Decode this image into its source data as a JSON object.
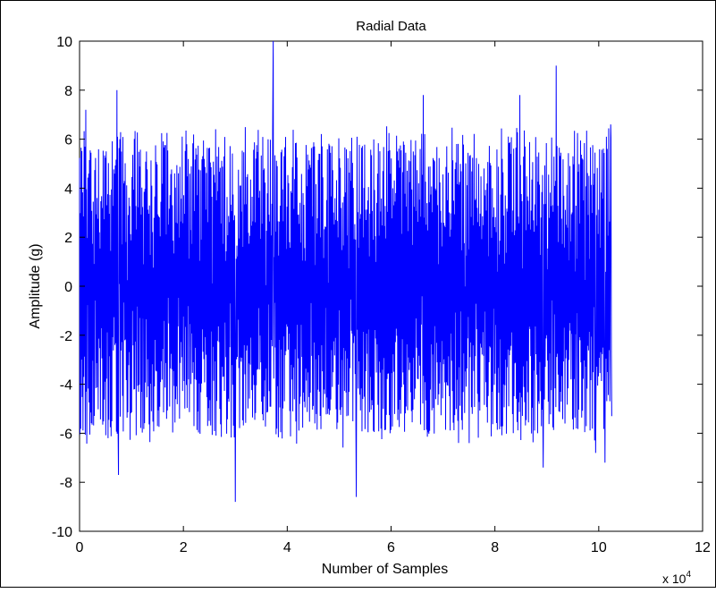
{
  "chart_data": {
    "type": "line",
    "title": "Radial Data",
    "xlabel": "Number of Samples",
    "ylabel": "Amplitude (g)",
    "x_multiplier_label": {
      "base": "x 10",
      "exponent": "4"
    },
    "xlim": [
      0,
      12
    ],
    "ylim": [
      -10,
      10
    ],
    "x_ticks": [
      0,
      2,
      4,
      6,
      8,
      10,
      12
    ],
    "x_tick_labels": [
      "0",
      "2",
      "4",
      "6",
      "8",
      "10",
      "12"
    ],
    "y_ticks": [
      -10,
      -8,
      -6,
      -4,
      -2,
      0,
      2,
      4,
      6,
      8,
      10
    ],
    "y_tick_labels": [
      "-10",
      "-8",
      "-6",
      "-4",
      "-2",
      "0",
      "2",
      "4",
      "6",
      "8",
      "10"
    ],
    "grid": false,
    "series": [
      {
        "color": "#0000ff",
        "x_range": [
          0,
          10.25
        ],
        "peaks": [
          {
            "x": 0.12,
            "y": 7.2
          },
          {
            "x": 0.72,
            "y": 8.0
          },
          {
            "x": 0.75,
            "y": -7.7
          },
          {
            "x": 3.0,
            "y": -8.8
          },
          {
            "x": 3.73,
            "y": 10.0
          },
          {
            "x": 5.33,
            "y": -8.6
          },
          {
            "x": 6.62,
            "y": 7.8
          },
          {
            "x": 8.48,
            "y": 7.8
          },
          {
            "x": 8.93,
            "y": -7.4
          },
          {
            "x": 9.18,
            "y": 9.0
          },
          {
            "x": 9.94,
            "y": -6.8
          },
          {
            "x": 10.12,
            "y": -7.2
          },
          {
            "x": 10.23,
            "y": 6.6
          },
          {
            "x": 10.25,
            "y": -5.3
          }
        ],
        "typical_envelope": [
          -6.5,
          6.5
        ]
      }
    ]
  }
}
